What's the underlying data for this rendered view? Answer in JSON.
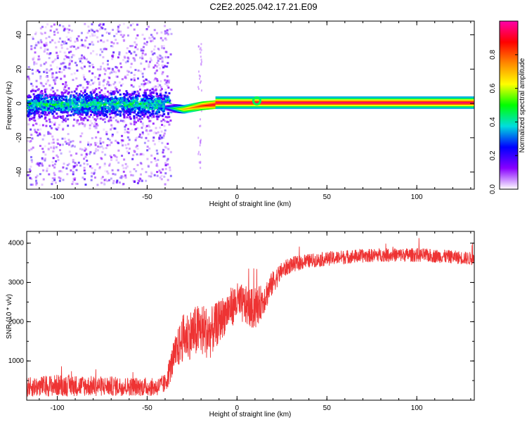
{
  "title": "C2E2.2025.042.17.21.E09",
  "chart_data": [
    {
      "type": "heatmap",
      "xlabel": "Height of straight line (km)",
      "ylabel": "Frequency (Hz)",
      "xlim": [
        -117,
        132
      ],
      "ylim": [
        -50,
        48
      ],
      "xticks": [
        -100,
        -50,
        0,
        50,
        100
      ],
      "yticks": [
        -40,
        -20,
        0,
        20,
        40
      ],
      "colorbar": {
        "label": "Normalized spectral amplitude",
        "range": [
          0,
          1
        ],
        "ticks": [
          "0.0",
          "0.2",
          "0.4",
          "0.6",
          "0.8"
        ],
        "colors": [
          "#ffffff",
          "#8800ff",
          "#0000ff",
          "#00dddd",
          "#00ff00",
          "#ffff00",
          "#ff8800",
          "#ff0000",
          "#ff00aa"
        ]
      },
      "ridge": [
        {
          "x": -115,
          "freq": 0,
          "amp": 0.35
        },
        {
          "x": -60,
          "freq": 0,
          "amp": 0.35
        },
        {
          "x": -40,
          "freq": -2,
          "amp": 0.3
        },
        {
          "x": -30,
          "freq": -3,
          "amp": 0.7
        },
        {
          "x": -20,
          "freq": -1,
          "amp": 0.85
        },
        {
          "x": -10,
          "freq": 0,
          "amp": 0.95
        },
        {
          "x": 10,
          "freq": 1,
          "amp": 0.95
        },
        {
          "x": 132,
          "freq": 0.5,
          "amp": 0.95
        }
      ]
    },
    {
      "type": "line",
      "xlabel": "Height of straight line (km)",
      "ylabel": "SNR (10 * v/v)",
      "xlim": [
        -117,
        132
      ],
      "ylim": [
        0,
        4300
      ],
      "xticks": [
        -100,
        -50,
        0,
        50,
        100
      ],
      "yticks": [
        1000,
        2000,
        3000,
        4000
      ],
      "color": "#ee3333",
      "series": [
        {
          "x": [
            -117,
            -100,
            -80,
            -60,
            -45,
            -40,
            -35,
            -30,
            -25,
            -20,
            -15,
            -10,
            -5,
            0,
            5,
            10,
            15,
            20,
            25,
            30,
            40,
            50,
            60,
            80,
            100,
            120,
            132
          ],
          "mean": [
            330,
            380,
            360,
            350,
            330,
            420,
            1100,
            1600,
            1700,
            1800,
            1700,
            2000,
            2300,
            2500,
            2400,
            2300,
            2600,
            3000,
            3300,
            3450,
            3550,
            3600,
            3650,
            3700,
            3700,
            3650,
            3600
          ],
          "noise": [
            250,
            280,
            260,
            240,
            230,
            250,
            450,
            600,
            650,
            700,
            650,
            550,
            520,
            500,
            500,
            520,
            400,
            300,
            220,
            200,
            180,
            180,
            180,
            170,
            180,
            170,
            170
          ]
        }
      ]
    }
  ]
}
